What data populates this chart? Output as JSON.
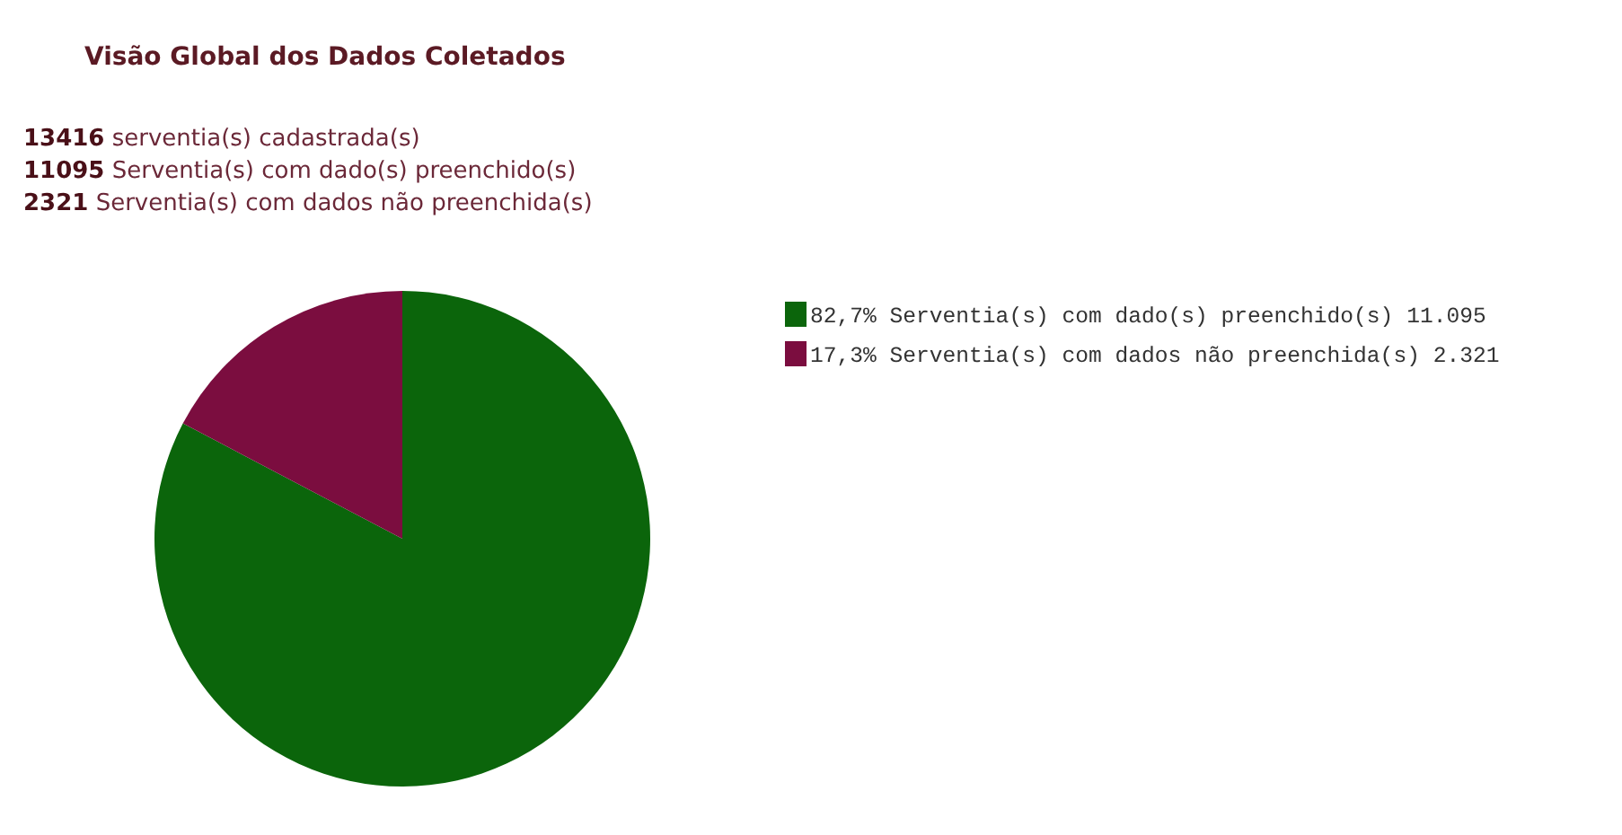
{
  "chart_data": {
    "type": "pie",
    "title": "Visão Global dos Dados Coletados",
    "annotations": [
      "13416 serventia(s) cadastrada(s)",
      "11095 Serventia(s) com dado(s) preenchido(s)",
      "2321 Serventia(s) com dados não preenchida(s)"
    ],
    "categories": [
      "82,7% Serventia(s) com dado(s) preenchido(s) 11.095",
      "17,3% Serventia(s) com dados não preenchida(s) 2.321"
    ],
    "values": [
      11095,
      2321
    ],
    "colors": [
      "#0b650b",
      "#7b0d3f"
    ],
    "legend": "right"
  }
}
